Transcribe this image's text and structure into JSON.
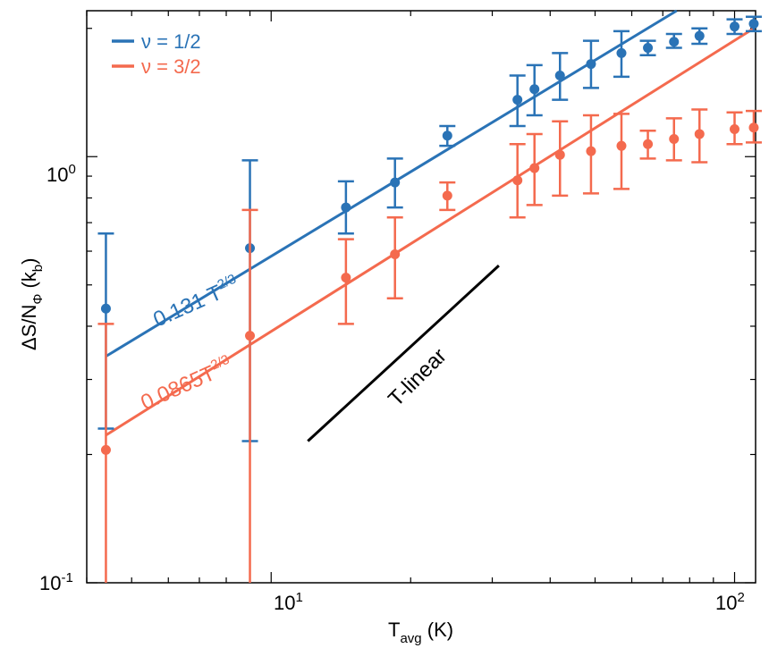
{
  "chart_data": {
    "type": "scatter",
    "xscale": "log",
    "yscale": "log",
    "xlim": [
      4.0,
      111
    ],
    "ylim": [
      0.1,
      2.2
    ],
    "xlabel_main": "T",
    "xlabel_sub": "avg",
    "xlabel_unit": " (K)",
    "ylabel_main": "ΔS/N",
    "ylabel_sub1": "Φ",
    "ylabel_mid": " (k",
    "ylabel_sub2": "b",
    "ylabel_end": ")",
    "x_ticks": [
      {
        "value": 10,
        "base": "10",
        "exp": "1"
      },
      {
        "value": 100,
        "base": "10",
        "exp": "2"
      }
    ],
    "y_ticks": [
      {
        "value": 1,
        "base": "10",
        "exp": "0"
      },
      {
        "value": 0.1,
        "base": "10",
        "exp": "-1"
      }
    ],
    "legend_position": "top-left",
    "series": [
      {
        "name": "ν = 1/2",
        "color": "#2a73b6",
        "x": [
          4.4,
          9,
          14.5,
          18.5,
          24,
          34,
          37,
          42,
          49,
          57,
          65,
          74,
          84,
          100,
          110
        ],
        "y": [
          0.44,
          0.61,
          0.76,
          0.87,
          1.12,
          1.36,
          1.44,
          1.55,
          1.65,
          1.75,
          1.8,
          1.86,
          1.92,
          2.02,
          2.05
        ],
        "err_low": [
          0.23,
          0.215,
          0.66,
          0.76,
          1.06,
          1.18,
          1.25,
          1.36,
          1.45,
          1.54,
          1.73,
          1.8,
          1.84,
          1.94,
          1.97
        ],
        "err_high": [
          0.66,
          0.98,
          0.875,
          0.99,
          1.18,
          1.55,
          1.64,
          1.75,
          1.87,
          1.97,
          1.87,
          1.94,
          2.0,
          2.1,
          2.13
        ],
        "fit": {
          "label_coef": "0.131 T",
          "label_exp": "2/3",
          "x": [
            4.4,
            75
          ],
          "y": [
            0.34,
            2.27
          ]
        }
      },
      {
        "name": "ν = 3/2",
        "color": "#f46a4e",
        "x": [
          4.4,
          9,
          14.5,
          18.5,
          24,
          34,
          37,
          42,
          49,
          57,
          65,
          74,
          84,
          100,
          110
        ],
        "y": [
          0.205,
          0.38,
          0.52,
          0.59,
          0.81,
          0.88,
          0.94,
          1.01,
          1.03,
          1.06,
          1.07,
          1.1,
          1.13,
          1.16,
          1.17
        ],
        "err_low": [
          0.07,
          0.07,
          0.405,
          0.465,
          0.75,
          0.72,
          0.77,
          0.81,
          0.82,
          0.84,
          0.99,
          0.98,
          0.97,
          1.07,
          1.08
        ],
        "err_high": [
          0.405,
          0.75,
          0.64,
          0.72,
          0.87,
          1.07,
          1.13,
          1.21,
          1.25,
          1.26,
          1.15,
          1.23,
          1.29,
          1.27,
          1.28
        ],
        "fit": {
          "label_coef": "0.0865T",
          "label_exp": "2/3",
          "x": [
            4.4,
            110
          ],
          "y": [
            0.222,
            2.0
          ]
        }
      }
    ],
    "reference_line": {
      "label": "T-linear",
      "color": "#000000",
      "x": [
        12,
        31
      ],
      "y": [
        0.215,
        0.555
      ]
    }
  }
}
